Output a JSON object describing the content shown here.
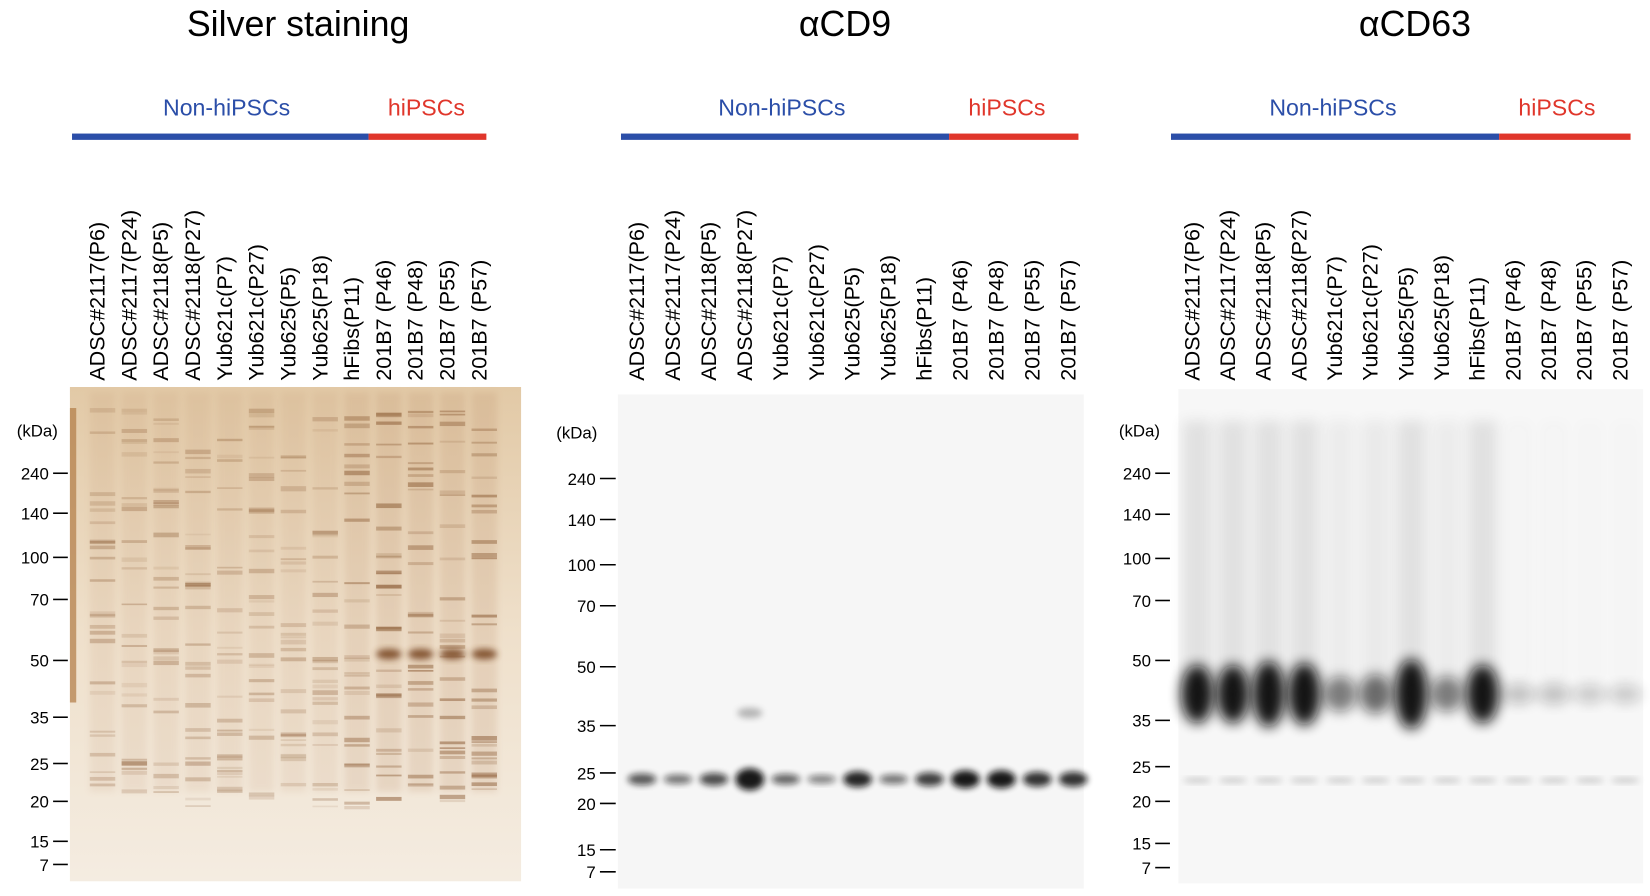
{
  "panels": [
    {
      "title": "Silver staining",
      "groups": [
        {
          "label": "Non-hiPSCs"
        },
        {
          "label": "hiPSCs"
        }
      ],
      "lanes": [
        "ADSC#2117(P6)",
        "ADSC#2117(P24)",
        "ADSC#2118(P5)",
        "ADSC#2118(P27)",
        "Yub621c(P7)",
        "Yub621c(P27)",
        "Yub625(P5)",
        "Yub625(P18)",
        "hFibs(P11)",
        "201B7 (P46)",
        "201B7 (P48)",
        "201B7 (P55)",
        "201B7 (P57)"
      ],
      "unit": "(kDa)",
      "markers": [
        "240",
        "140",
        "100",
        "70",
        "50",
        "35",
        "25",
        "20",
        "15",
        "7"
      ]
    },
    {
      "title": "αCD9",
      "groups": [
        {
          "label": "Non-hiPSCs"
        },
        {
          "label": "hiPSCs"
        }
      ],
      "lanes": [
        "ADSC#2117(P6)",
        "ADSC#2117(P24)",
        "ADSC#2118(P5)",
        "ADSC#2118(P27)",
        "Yub621c(P7)",
        "Yub621c(P27)",
        "Yub625(P5)",
        "Yub625(P18)",
        "hFibs(P11)",
        "201B7 (P46)",
        "201B7 (P48)",
        "201B7 (P55)",
        "201B7 (P57)"
      ],
      "unit": "(kDa)",
      "markers": [
        "240",
        "140",
        "100",
        "70",
        "50",
        "35",
        "25",
        "20",
        "15",
        "7"
      ]
    },
    {
      "title": "αCD63",
      "groups": [
        {
          "label": "Non-hiPSCs"
        },
        {
          "label": "hiPSCs"
        }
      ],
      "lanes": [
        "ADSC#2117(P6)",
        "ADSC#2117(P24)",
        "ADSC#2118(P5)",
        "ADSC#2118(P27)",
        "Yub621c(P7)",
        "Yub621c(P27)",
        "Yub625(P5)",
        "Yub625(P18)",
        "hFibs(P11)",
        "201B7 (P46)",
        "201B7 (P48)",
        "201B7 (P55)",
        "201B7 (P57)"
      ],
      "unit": "(kDa)",
      "markers": [
        "240",
        "140",
        "100",
        "70",
        "50",
        "35",
        "25",
        "20",
        "15",
        "7"
      ]
    }
  ]
}
